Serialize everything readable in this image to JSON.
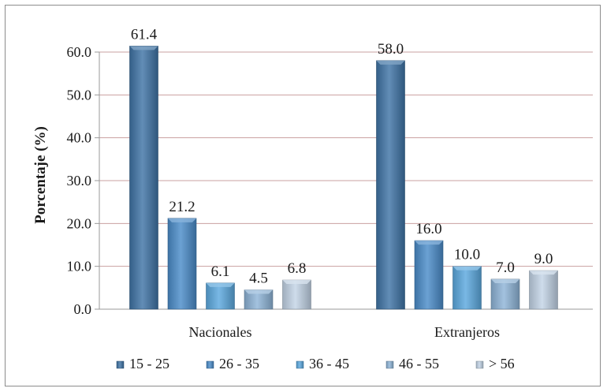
{
  "chart_data": {
    "type": "bar",
    "title": "",
    "xlabel": "",
    "ylabel": "Porcentaje (%)",
    "ylim": [
      0,
      60
    ],
    "yticks": [
      0,
      10,
      20,
      30,
      40,
      50,
      60
    ],
    "ytick_labels": [
      "0.0",
      "10.0",
      "20.0",
      "30.0",
      "40.0",
      "50.0",
      "60.0"
    ],
    "grid": true,
    "legend_position": "bottom",
    "categories": [
      "Nacionales",
      "Extranjeros"
    ],
    "series": [
      {
        "name": "15 - 25",
        "values": [
          61.4,
          58.0
        ],
        "labels": [
          "61.4",
          "58.0"
        ],
        "color": "#3f74a6"
      },
      {
        "name": "26 - 35",
        "values": [
          21.2,
          16.0
        ],
        "labels": [
          "21.2",
          "16.0"
        ],
        "color": "#4a8cc9"
      },
      {
        "name": "36 - 45",
        "values": [
          6.1,
          10.0
        ],
        "labels": [
          "6.1",
          "10.0"
        ],
        "color": "#5ca9df"
      },
      {
        "name": "46 - 55",
        "values": [
          4.5,
          7.0
        ],
        "labels": [
          "4.5",
          "7.0"
        ],
        "color": "#8fb5d8"
      },
      {
        "name": "> 56",
        "values": [
          6.8,
          9.0
        ],
        "labels": [
          "6.8",
          "9.0"
        ],
        "color": "#c3d4e6"
      }
    ]
  }
}
